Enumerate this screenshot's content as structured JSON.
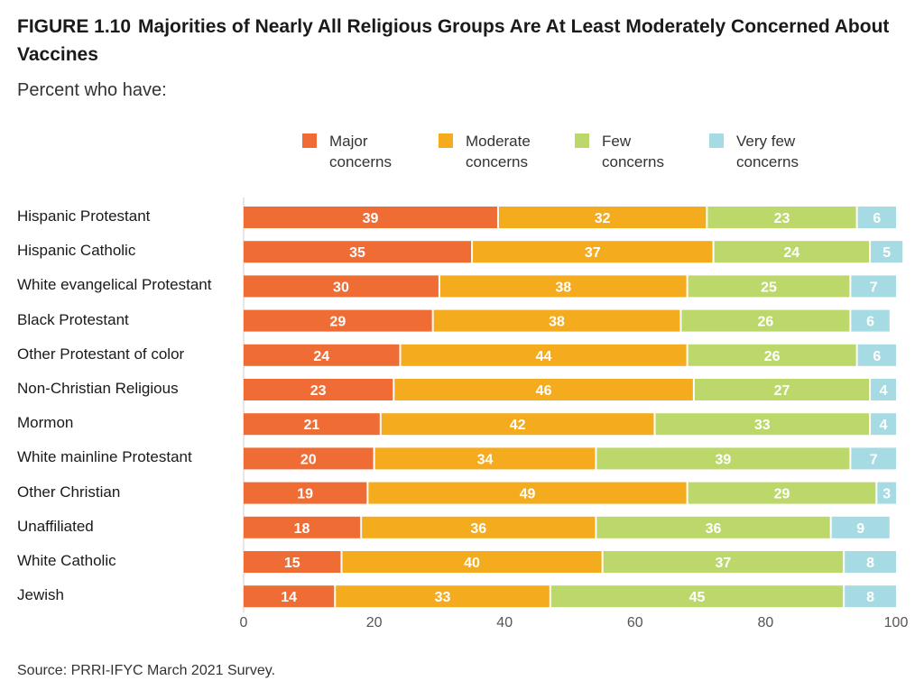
{
  "header": {
    "figure_number": "FIGURE 1.10",
    "title": "Majorities of Nearly All Religious Groups Are At Least Moderately Concerned About Vaccines",
    "subtitle": "Percent who have:"
  },
  "source": "Source: PRRI-IFYC March 2021 Survey.",
  "colors": {
    "major": "#ef6c35",
    "moderate": "#f5ab1e",
    "few": "#bcd86a",
    "very_few": "#a6dbe4"
  },
  "chart_data": {
    "type": "bar",
    "orientation": "horizontal",
    "stacked": true,
    "categories": [
      "Hispanic Protestant",
      "Hispanic Catholic",
      "White evangelical Protestant",
      "Black Protestant",
      "Other Protestant of color",
      "Non-Christian Religious",
      "Mormon",
      "White mainline Protestant",
      "Other Christian",
      "Unaffiliated",
      "White Catholic",
      "Jewish"
    ],
    "series": [
      {
        "name": "Major\nconcerns",
        "color": "#ef6c35",
        "values": [
          39,
          35,
          30,
          29,
          24,
          23,
          21,
          20,
          19,
          18,
          15,
          14
        ]
      },
      {
        "name": "Moderate\nconcerns",
        "color": "#f5ab1e",
        "values": [
          32,
          37,
          38,
          38,
          44,
          46,
          42,
          34,
          49,
          36,
          40,
          33
        ]
      },
      {
        "name": "Few\nconcerns",
        "color": "#bcd86a",
        "values": [
          23,
          24,
          25,
          26,
          26,
          27,
          33,
          39,
          29,
          36,
          37,
          45
        ]
      },
      {
        "name": "Very few\nconcerns",
        "color": "#a6dbe4",
        "values": [
          6,
          5,
          7,
          6,
          6,
          4,
          4,
          7,
          3,
          9,
          8,
          8
        ]
      }
    ],
    "xlim": [
      0,
      100
    ],
    "xticks": [
      0,
      20,
      40,
      60,
      80,
      100
    ],
    "xlabel": "",
    "ylabel": "",
    "grid": false,
    "legend_position": "top"
  }
}
